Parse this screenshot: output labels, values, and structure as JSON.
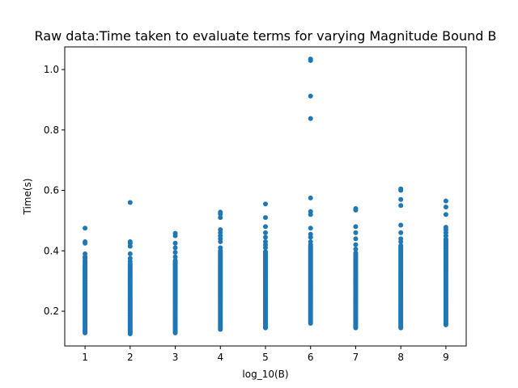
{
  "chart_data": {
    "type": "scatter",
    "title": "Raw data:Time taken to evaluate terms for varying Magnitude Bound B",
    "xlabel": "log_10(B)",
    "ylabel": "Time(s)",
    "xlim": [
      0.55,
      9.45
    ],
    "ylim": [
      0.085,
      1.075
    ],
    "x_ticks": [
      1,
      2,
      3,
      4,
      5,
      6,
      7,
      8,
      9
    ],
    "y_ticks": [
      0.2,
      0.4,
      0.6,
      0.8,
      1.0
    ],
    "x_tick_labels": [
      "1",
      "2",
      "3",
      "4",
      "5",
      "6",
      "7",
      "8",
      "9"
    ],
    "y_tick_labels": [
      "0.2",
      "0.4",
      "0.6",
      "0.8",
      "1.0"
    ],
    "grid": false,
    "legend": "none",
    "marker_color": "#1f77b4",
    "series": [
      {
        "columns": [
          {
            "x": 1,
            "dense_range": [
              0.128,
              0.37
            ],
            "points": [
              0.375,
              0.38,
              0.39,
              0.425,
              0.43,
              0.475
            ]
          },
          {
            "x": 2,
            "dense_range": [
              0.125,
              0.36
            ],
            "points": [
              0.365,
              0.375,
              0.39,
              0.415,
              0.425,
              0.43,
              0.56
            ]
          },
          {
            "x": 3,
            "dense_range": [
              0.128,
              0.37
            ],
            "points": [
              0.38,
              0.395,
              0.41,
              0.425,
              0.45,
              0.458
            ]
          },
          {
            "x": 4,
            "dense_range": [
              0.14,
              0.4
            ],
            "points": [
              0.41,
              0.43,
              0.44,
              0.45,
              0.46,
              0.47,
              0.51,
              0.522,
              0.528
            ]
          },
          {
            "x": 5,
            "dense_range": [
              0.145,
              0.4
            ],
            "points": [
              0.41,
              0.42,
              0.43,
              0.445,
              0.46,
              0.48,
              0.51,
              0.555
            ]
          },
          {
            "x": 6,
            "dense_range": [
              0.16,
              0.42
            ],
            "points": [
              0.43,
              0.445,
              0.455,
              0.475,
              0.52,
              0.53,
              0.575,
              0.838,
              0.912,
              1.03,
              1.035
            ]
          },
          {
            "x": 7,
            "dense_range": [
              0.145,
              0.395
            ],
            "points": [
              0.405,
              0.42,
              0.44,
              0.46,
              0.48,
              0.535,
              0.54
            ]
          },
          {
            "x": 8,
            "dense_range": [
              0.145,
              0.42
            ],
            "points": [
              0.43,
              0.44,
              0.46,
              0.485,
              0.55,
              0.57,
              0.6,
              0.605
            ]
          },
          {
            "x": 9,
            "dense_range": [
              0.155,
              0.44
            ],
            "points": [
              0.45,
              0.46,
              0.47,
              0.478,
              0.52,
              0.545,
              0.565
            ]
          }
        ]
      }
    ]
  }
}
